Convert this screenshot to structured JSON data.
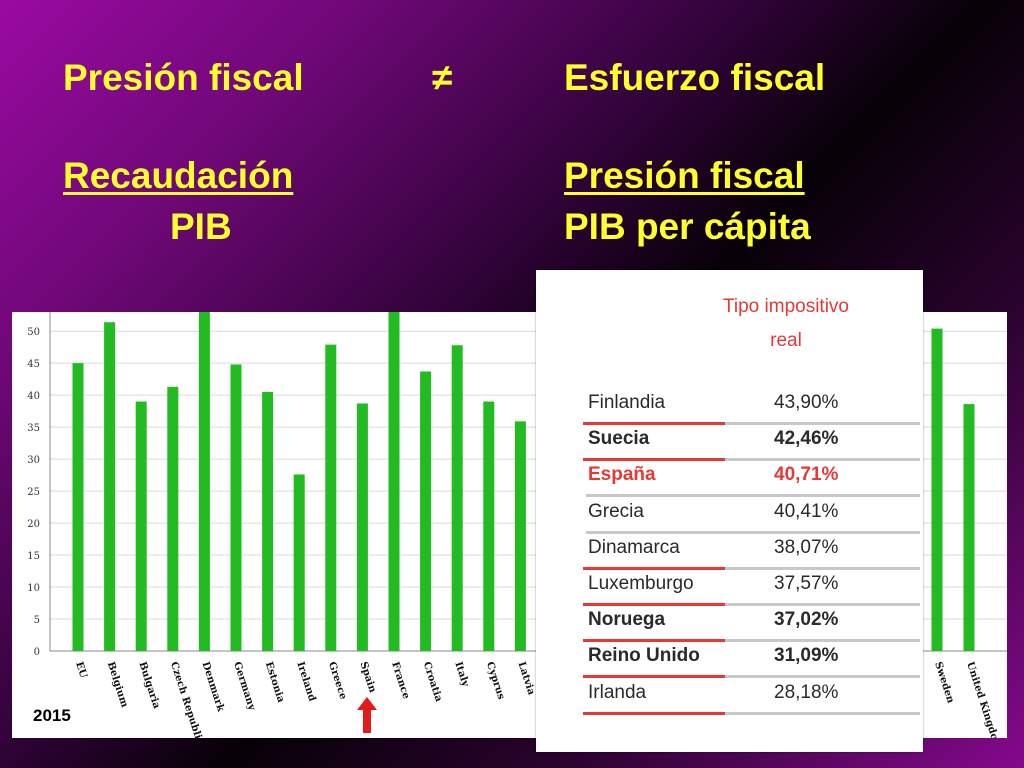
{
  "heading": {
    "left_top": "Presión fiscal",
    "symbol": "≠",
    "right_top": "Esfuerzo fiscal",
    "left_numerator": "Recaudación",
    "left_denominator": "PIB",
    "right_numerator": "Presión fiscal",
    "right_denominator": "PIB per cápita"
  },
  "year_label": "2015",
  "colors": {
    "heading": "#ffff2e",
    "bar": "#22bb22",
    "highlight": "#e53935",
    "arrow": "#e21b1b"
  },
  "chart_data": {
    "type": "bar",
    "ylim": [
      0,
      53
    ],
    "yticks": [
      0,
      5,
      10,
      15,
      20,
      25,
      30,
      35,
      40,
      45,
      50
    ],
    "grid": true,
    "categories": [
      "EU",
      "Belgium",
      "Bulgaria",
      "Czech Republic",
      "Denmark",
      "Germany",
      "Estonia",
      "Ireland",
      "Greece",
      "Spain",
      "France",
      "Croatia",
      "Italy",
      "Cyprus",
      "Latvia"
    ],
    "values": [
      45.0,
      51.4,
      39.0,
      41.3,
      53.5,
      44.8,
      40.5,
      27.6,
      47.9,
      38.7,
      53.5,
      43.7,
      47.8,
      39.0,
      35.9
    ],
    "right_fragment": {
      "categories": [
        "Sweden",
        "United Kingdom"
      ],
      "values": [
        50.4,
        38.6
      ]
    },
    "highlight_category": "Spain"
  },
  "table": {
    "header_line1": "Tipo impositivo",
    "header_line2": "real",
    "rows": [
      {
        "country": "Finlandia",
        "value": "43,90%",
        "bold": false,
        "highlight": false,
        "red_rule": true
      },
      {
        "country": "Suecia",
        "value": "42,46%",
        "bold": true,
        "highlight": false,
        "red_rule": true
      },
      {
        "country": "España",
        "value": "40,71%",
        "bold": true,
        "highlight": true,
        "red_rule": false
      },
      {
        "country": "Grecia",
        "value": "40,41%",
        "bold": false,
        "highlight": false,
        "red_rule": false
      },
      {
        "country": "Dinamarca",
        "value": "38,07%",
        "bold": false,
        "highlight": false,
        "red_rule": true
      },
      {
        "country": "Luxemburgo",
        "value": "37,57%",
        "bold": false,
        "highlight": false,
        "red_rule": true
      },
      {
        "country": "Noruega",
        "value": "37,02%",
        "bold": true,
        "highlight": false,
        "red_rule": true
      },
      {
        "country": "Reino Unido",
        "value": "31,09%",
        "bold": true,
        "highlight": false,
        "red_rule": true
      },
      {
        "country": "Irlanda",
        "value": "28,18%",
        "bold": false,
        "highlight": false,
        "red_rule": true
      }
    ]
  }
}
